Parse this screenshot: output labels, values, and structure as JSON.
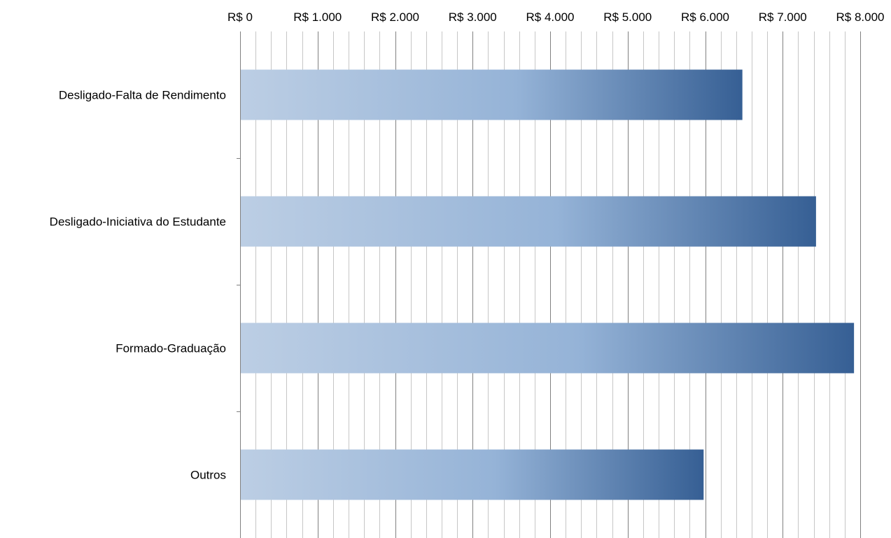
{
  "chart_data": {
    "type": "bar",
    "orientation": "horizontal",
    "categories": [
      "Desligado-Falta de Rendimento",
      "Desligado-Iniciativa do Estudante",
      "Formado-Graduação",
      "Outros"
    ],
    "values": [
      6480,
      7430,
      7920,
      5980
    ],
    "xlim": [
      0,
      8000
    ],
    "x_major_step": 1000,
    "x_minor_step": 200,
    "tick_labels": [
      "R$ 0",
      "R$ 1.000",
      "R$ 2.000",
      "R$ 3.000",
      "R$ 4.000",
      "R$ 5.000",
      "R$ 6.000",
      "R$ 7.000",
      "R$ 8.000"
    ],
    "x_axis_position": "top",
    "grid": true,
    "legend": "none",
    "title": "",
    "xlabel": "",
    "ylabel": "",
    "colors": {
      "bar_gradient_start": "#bccee4",
      "bar_gradient_mid": "#95b3d7",
      "bar_gradient_end": "#365f94",
      "major_grid": "#808080",
      "minor_grid": "#c6c6c6",
      "axis": "#808080"
    }
  }
}
